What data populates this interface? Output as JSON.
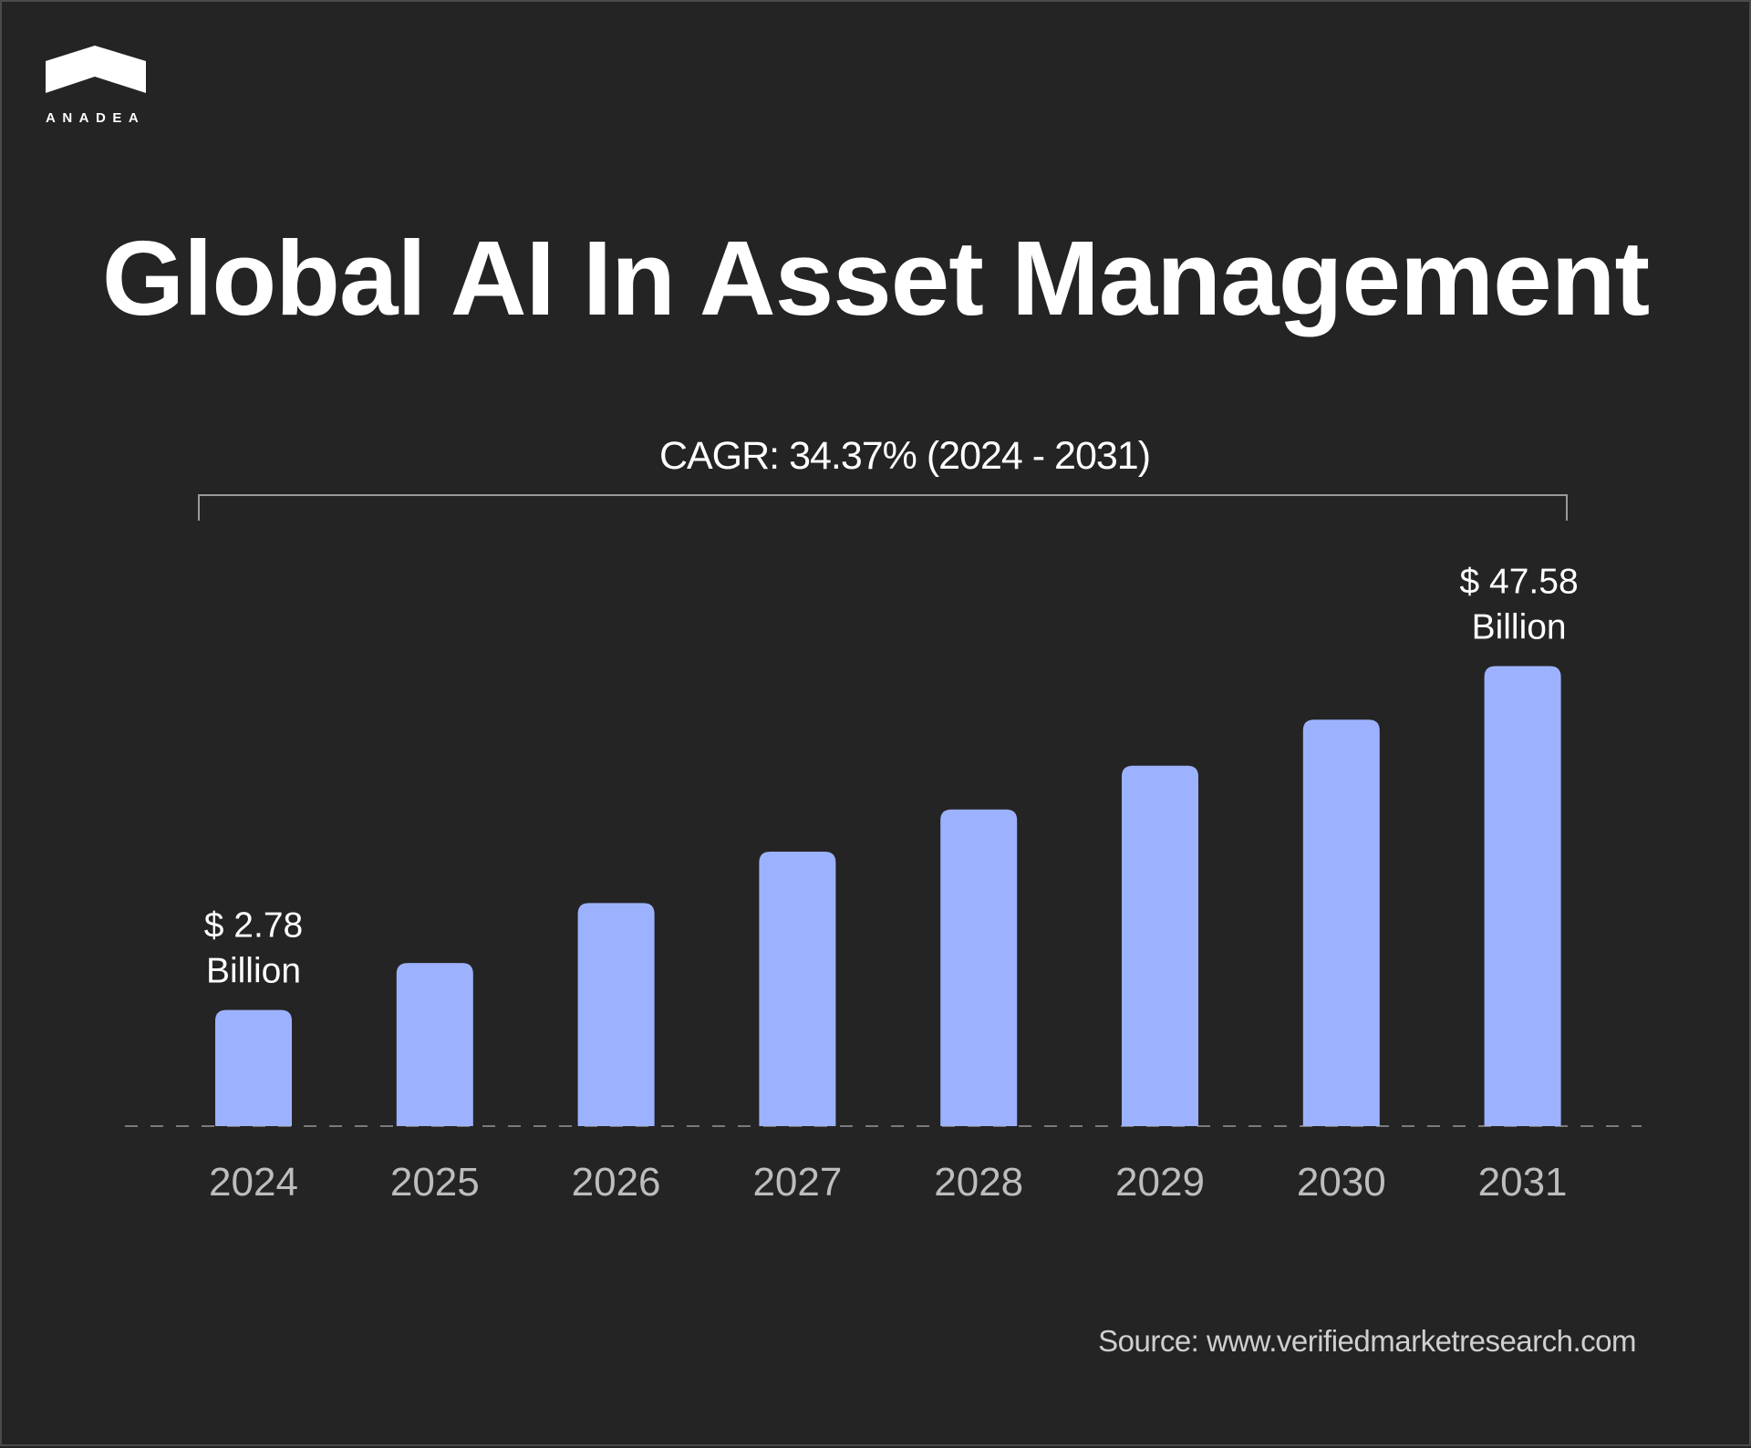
{
  "brand": {
    "name": "ANADEA",
    "logo_icon": "chevron-roof-icon"
  },
  "title": "Global AI In Asset Management",
  "source": "Source: www.verifiedmarketresearch.com",
  "chart_data": {
    "type": "bar",
    "title": "Global AI In Asset Management",
    "annotation": "CAGR: 34.37% (2024 - 2031)",
    "categories": [
      "2024",
      "2025",
      "2026",
      "2027",
      "2028",
      "2029",
      "2030",
      "2031"
    ],
    "values": [
      2.78,
      8.9,
      16.7,
      23.4,
      28.9,
      34.6,
      40.6,
      47.58
    ],
    "unit": "Billion USD",
    "data_labels": [
      {
        "category": "2024",
        "line1": "$ 2.78",
        "line2": "Billion"
      },
      {
        "category": "2031",
        "line1": "$ 47.58",
        "line2": "Billion"
      }
    ],
    "xlabel": "",
    "ylabel": "",
    "grid": false,
    "legend": "none",
    "bar_color": "#9db2ff",
    "background": "#242424"
  }
}
